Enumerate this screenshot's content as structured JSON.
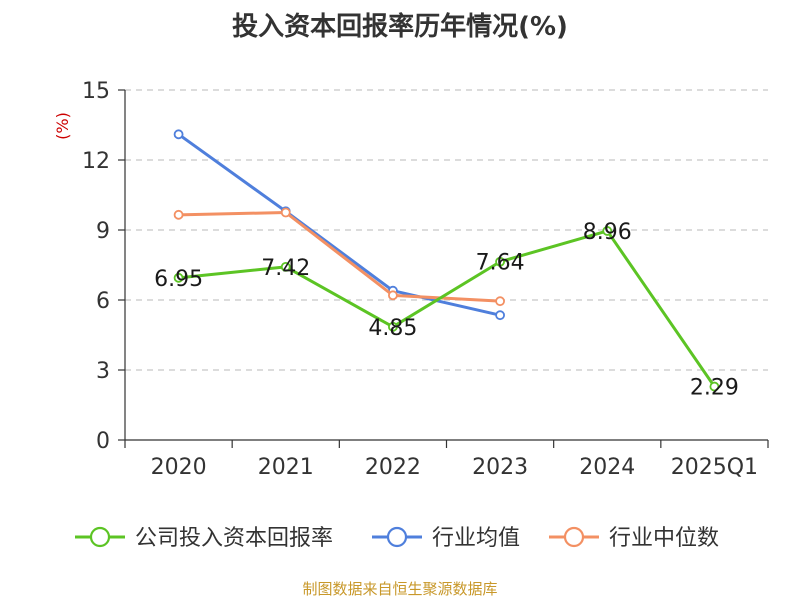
{
  "chart_data": {
    "type": "line",
    "title": "投入资本回报率历年情况(%)",
    "ylabel": "(%)",
    "ylim": [
      0,
      15
    ],
    "yticks": [
      0,
      3,
      6,
      9,
      12,
      15
    ],
    "grid": true,
    "legend_position": "bottom",
    "categories": [
      "2020",
      "2021",
      "2022",
      "2023",
      "2024",
      "2025Q1"
    ],
    "series": [
      {
        "name": "公司投入资本回报率",
        "color": "#5cc424",
        "values": [
          6.95,
          7.42,
          4.85,
          7.64,
          8.96,
          2.29
        ],
        "labels": [
          "6.95",
          "7.42",
          "4.85",
          "7.64",
          "8.96",
          "2.29"
        ]
      },
      {
        "name": "行业均值",
        "color": "#4f7fdc",
        "values": [
          13.1,
          9.8,
          6.4,
          5.35,
          null,
          null
        ]
      },
      {
        "name": "行业中位数",
        "color": "#f39063",
        "values": [
          9.65,
          9.75,
          6.2,
          5.95,
          null,
          null
        ]
      }
    ]
  },
  "source": "制图数据来自恒生聚源数据库",
  "colors": {
    "ylabel": "#cc0000",
    "grid": "#c8c8c8",
    "axis": "#333333"
  }
}
